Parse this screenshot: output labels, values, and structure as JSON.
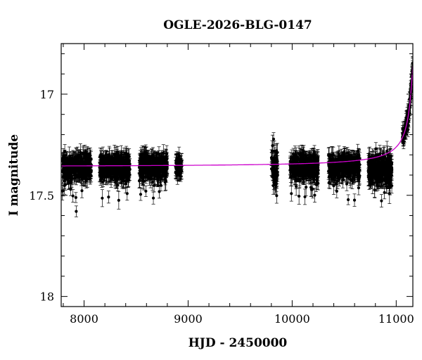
{
  "chart_data": {
    "type": "scatter",
    "title": "OGLE-2026-BLG-0147",
    "xlabel": "HJD - 2450000",
    "ylabel": "I magnitude",
    "xlim": [
      7780,
      11160
    ],
    "ylim": [
      18.05,
      16.75
    ],
    "y_inverted": true,
    "x_ticks": [
      8000,
      9000,
      10000,
      11000
    ],
    "y_ticks": [
      17,
      17.5,
      18
    ],
    "y_tick_labels": [
      "17",
      "17.5",
      "18"
    ],
    "grid": false,
    "colors": {
      "data": "#000000",
      "model": "#cc00cc",
      "frame": "#000000"
    },
    "series": [
      {
        "kind": "photometry-with-errorbars",
        "seasons": [
          {
            "x_range": [
              7790,
              8070
            ],
            "mag_center": 17.36,
            "scatter": 0.03,
            "errorbar": 0.035
          },
          {
            "x_range": [
              8150,
              8440
            ],
            "mag_center": 17.36,
            "scatter": 0.03,
            "errorbar": 0.035
          },
          {
            "x_range": [
              8530,
              8800
            ],
            "mag_center": 17.36,
            "scatter": 0.03,
            "errorbar": 0.035
          },
          {
            "x_range": [
              8880,
              8940
            ],
            "mag_center": 17.36,
            "scatter": 0.025,
            "errorbar": 0.035
          },
          {
            "x_range": [
              9800,
              9860
            ],
            "mag_center": 17.36,
            "scatter": 0.05,
            "errorbar": 0.04
          },
          {
            "x_range": [
              9980,
              10250
            ],
            "mag_center": 17.36,
            "scatter": 0.03,
            "errorbar": 0.035
          },
          {
            "x_range": [
              10350,
              10650
            ],
            "mag_center": 17.36,
            "scatter": 0.03,
            "errorbar": 0.035
          },
          {
            "x_range": [
              10730,
              10960
            ],
            "mag_center": 17.37,
            "scatter": 0.035,
            "errorbar": 0.04
          },
          {
            "x_range": [
              11060,
              11160
            ],
            "rising": true,
            "mag_center": 17.2,
            "scatter": 0.02,
            "errorbar": 0.03
          }
        ]
      },
      {
        "kind": "model-curve",
        "baseline_mag": 17.36,
        "t0": 11180,
        "rise_width": 60,
        "peak_amplitude": 0.6
      }
    ]
  }
}
